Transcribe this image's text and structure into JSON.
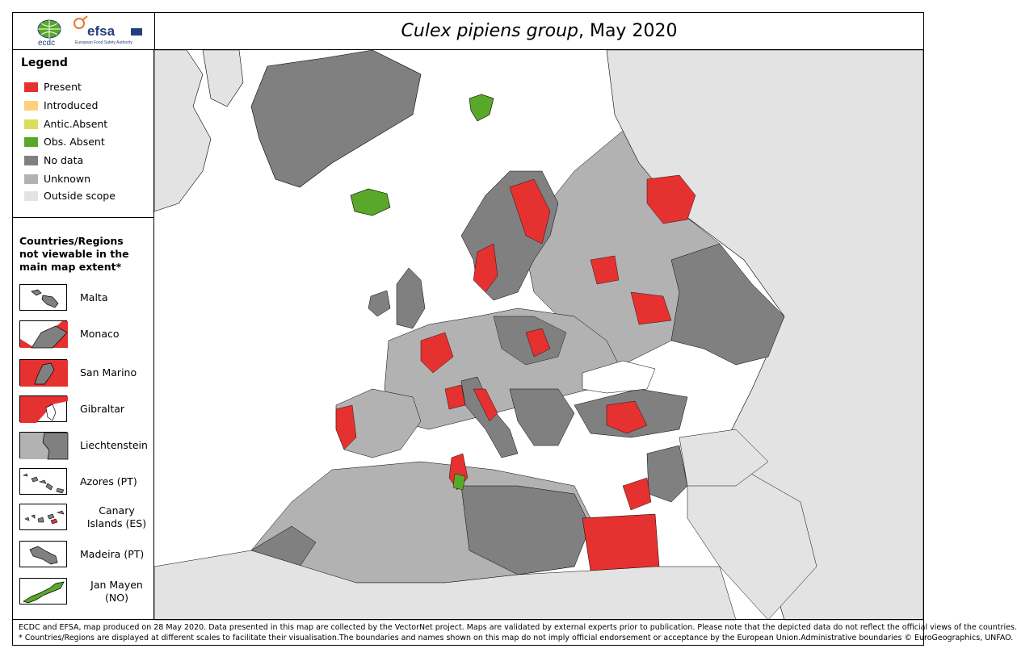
{
  "header": {
    "title_italic": "Culex pipiens group",
    "title_rest": ", May 2020",
    "logos": {
      "ecdc_text": "ecdc",
      "efsa_text": "efsa",
      "efsa_subtitle": "European Food Safety Authority"
    }
  },
  "legend": {
    "title": "Legend",
    "items": [
      {
        "label": "Present",
        "color": "#e53130"
      },
      {
        "label": "Introduced",
        "color": "#fdd17b"
      },
      {
        "label": "Antic.Absent",
        "color": "#d6e05c"
      },
      {
        "label": "Obs. Absent",
        "color": "#5aa82a"
      },
      {
        "label": "No data",
        "color": "#808080"
      },
      {
        "label": "Unknown",
        "color": "#b2b2b2"
      },
      {
        "label": "Outside scope",
        "color": "#e3e3e3"
      }
    ]
  },
  "regions": {
    "title_lines": [
      "Countries/Regions",
      "not viewable in the",
      "main map extent*"
    ],
    "items": [
      {
        "label": "Malta"
      },
      {
        "label": "Monaco"
      },
      {
        "label": "San Marino"
      },
      {
        "label": "Gibraltar"
      },
      {
        "label": "Liechtenstein"
      },
      {
        "label": "Azores (PT)"
      },
      {
        "label": "Canary Islands (ES)"
      },
      {
        "label": "Madeira (PT)"
      },
      {
        "label": "Jan Mayen (NO)"
      }
    ]
  },
  "footer": {
    "line1": "ECDC and EFSA, map produced on 28 May 2020. Data presented in this map are collected by the VectorNet project. Maps are validated by external experts prior to publication. Please note that the depicted data do not reflect the official views of the countries.",
    "line2": "* Countries/Regions are displayed at different scales to facilitate their visualisation.The boundaries and names shown on this map do not imply official endorsement or acceptance by the European Union.Administrative boundaries © EuroGeographics, UNFAO."
  },
  "colors": {
    "present": "#e53130",
    "obs_absent": "#5aa82a",
    "no_data": "#808080",
    "unknown": "#b2b2b2",
    "outside": "#e3e3e3",
    "sea": "#ffffff"
  }
}
